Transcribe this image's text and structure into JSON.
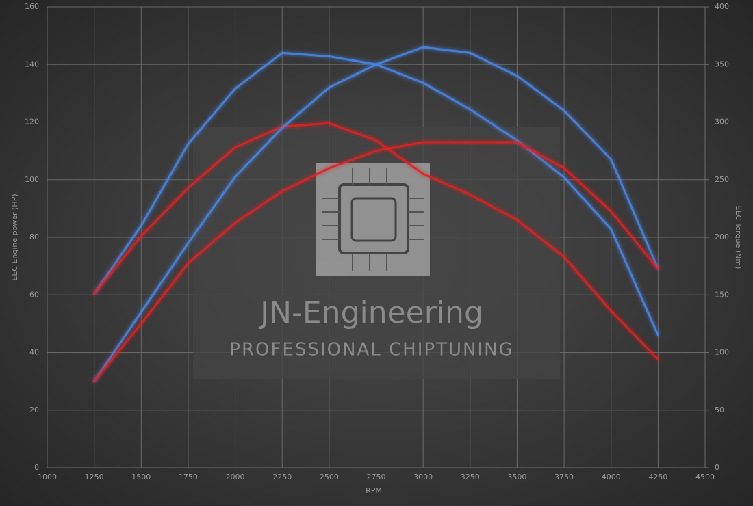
{
  "chart_data": {
    "type": "line",
    "x": [
      1250,
      1500,
      1750,
      2000,
      2250,
      2500,
      2750,
      3000,
      3250,
      3500,
      3750,
      4000,
      4250
    ],
    "series": [
      {
        "color": "#4a86e8",
        "axis": "y2",
        "values": [
          151,
          210,
          281,
          329,
          360,
          357,
          350,
          334,
          311,
          284,
          252,
          207,
          115
        ]
      },
      {
        "color": "#e02020",
        "axis": "y2",
        "values": [
          151,
          201,
          243,
          278,
          296,
          299,
          284,
          255,
          237,
          215,
          183,
          136,
          94
        ]
      },
      {
        "color": "#4a86e8",
        "axis": "y",
        "values": [
          30,
          54,
          78,
          101,
          118,
          132,
          140,
          146,
          144,
          136,
          124,
          107,
          69
        ]
      },
      {
        "color": "#e02020",
        "axis": "y",
        "values": [
          30,
          50,
          71,
          85,
          96,
          104,
          110,
          113,
          113,
          113,
          104,
          89,
          69
        ]
      }
    ],
    "xlabel": "RPM",
    "ylabel": "EEC Engine power (HP)",
    "y2label": "EEC Torque (Nm)",
    "xlim": [
      1000,
      4500
    ],
    "xticks": [
      1000,
      1250,
      1500,
      1750,
      2000,
      2250,
      2500,
      2750,
      3000,
      3250,
      3500,
      3750,
      4000,
      4250,
      4500
    ],
    "ylim": [
      0,
      160
    ],
    "yticks": [
      0,
      20,
      40,
      60,
      80,
      100,
      120,
      140,
      160
    ],
    "y2lim": [
      0,
      400
    ],
    "y2ticks": [
      0,
      50,
      100,
      150,
      200,
      250,
      300,
      350,
      400
    ],
    "grid": true,
    "watermark": {
      "title": "JN-Engineering",
      "subtitle": "PROFESSIONAL CHIPTUNING"
    }
  }
}
